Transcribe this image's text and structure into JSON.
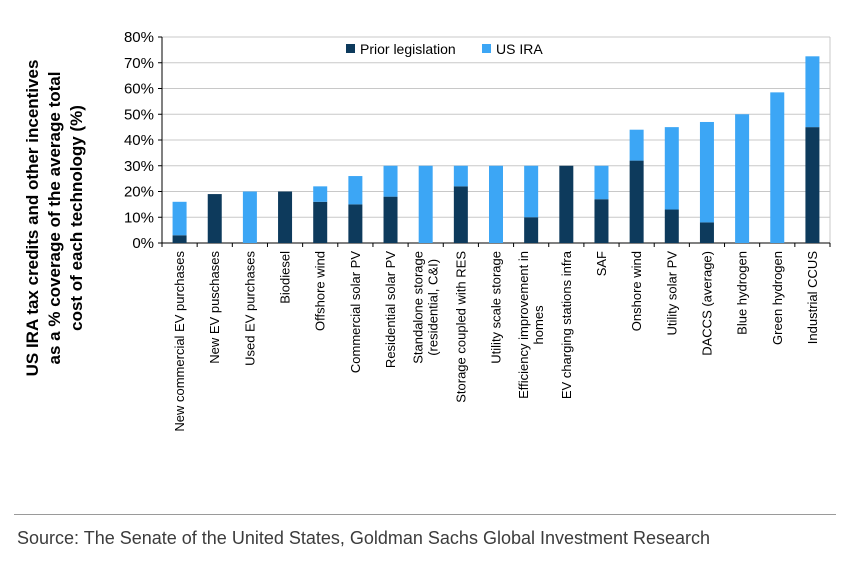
{
  "chart_data": {
    "type": "bar",
    "stacked": true,
    "ylabel": [
      "US IRA tax credits and other incentives",
      "as a % coverage of the average total",
      "cost of each technology (%)"
    ],
    "ylim": [
      0,
      80
    ],
    "yticks": [
      "0%",
      "10%",
      "20%",
      "30%",
      "40%",
      "50%",
      "60%",
      "70%",
      "80%"
    ],
    "legend_position": "top",
    "categories": [
      [
        "New commercial EV purchases"
      ],
      [
        "New EV puschases"
      ],
      [
        "Used EV purchases"
      ],
      [
        "Biodiesel"
      ],
      [
        "Offshore wind"
      ],
      [
        "Commercial solar PV"
      ],
      [
        "Residential solar PV"
      ],
      [
        "Standalone storage",
        "(residential, C&I)"
      ],
      [
        "Storage coupled with RES"
      ],
      [
        "Utility scale storage"
      ],
      [
        "Efficiency improvement in",
        "homes"
      ],
      [
        "EV charging stations infra"
      ],
      [
        "SAF"
      ],
      [
        "Onshore wind"
      ],
      [
        "Utility solar PV"
      ],
      [
        "DACCS (average)"
      ],
      [
        "Blue hydrogen"
      ],
      [
        "Green hydrogen"
      ],
      [
        "Industrial CCUS"
      ]
    ],
    "series": [
      {
        "name": "Prior legislation",
        "color": "#0d3a5c",
        "values": [
          3,
          19,
          0,
          20,
          16,
          15,
          18,
          0,
          22,
          0,
          10,
          30,
          17,
          32,
          13,
          8,
          0,
          0,
          45
        ]
      },
      {
        "name": "US IRA",
        "color": "#3ca6f5",
        "values": [
          13,
          0,
          20,
          0,
          6,
          11,
          12,
          30,
          8,
          30,
          20,
          0,
          13,
          12,
          32,
          39,
          50,
          58.5,
          27.5
        ]
      }
    ]
  },
  "source": "Source: The Senate of the United States, Goldman Sachs Global Investment Research"
}
